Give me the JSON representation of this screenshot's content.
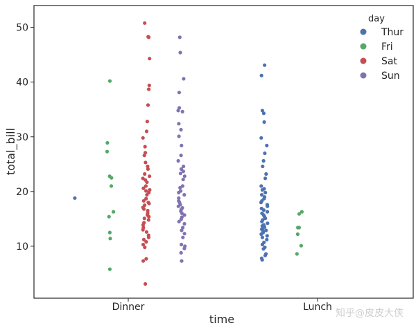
{
  "chart_data": {
    "type": "scatter",
    "subtype": "strip (stripplot with hue dodge)",
    "xlabel": "time",
    "ylabel": "total_bill",
    "categories": [
      "Dinner",
      "Lunch"
    ],
    "ylim": [
      0.5,
      54
    ],
    "yticks": [
      10,
      20,
      30,
      40,
      50
    ],
    "grid": false,
    "legend": {
      "title": "day",
      "placement": "top-right"
    },
    "series": [
      {
        "name": "Thur",
        "color": "#4C72B0",
        "points": [
          {
            "category": "Dinner",
            "y": 18.8
          },
          {
            "category": "Lunch",
            "y": 43.1
          },
          {
            "category": "Lunch",
            "y": 41.2
          },
          {
            "category": "Lunch",
            "y": 34.8
          },
          {
            "category": "Lunch",
            "y": 34.3
          },
          {
            "category": "Lunch",
            "y": 32.7
          },
          {
            "category": "Lunch",
            "y": 29.8
          },
          {
            "category": "Lunch",
            "y": 28.4
          },
          {
            "category": "Lunch",
            "y": 27.0
          },
          {
            "category": "Lunch",
            "y": 25.6
          },
          {
            "category": "Lunch",
            "y": 24.6
          },
          {
            "category": "Lunch",
            "y": 23.2
          },
          {
            "category": "Lunch",
            "y": 22.4
          },
          {
            "category": "Lunch",
            "y": 21.0
          },
          {
            "category": "Lunch",
            "y": 20.5
          },
          {
            "category": "Lunch",
            "y": 20.3
          },
          {
            "category": "Lunch",
            "y": 19.8
          },
          {
            "category": "Lunch",
            "y": 19.4
          },
          {
            "category": "Lunch",
            "y": 19.0
          },
          {
            "category": "Lunch",
            "y": 18.7
          },
          {
            "category": "Lunch",
            "y": 18.3
          },
          {
            "category": "Lunch",
            "y": 18.0
          },
          {
            "category": "Lunch",
            "y": 17.6
          },
          {
            "category": "Lunch",
            "y": 17.3
          },
          {
            "category": "Lunch",
            "y": 16.9
          },
          {
            "category": "Lunch",
            "y": 16.6
          },
          {
            "category": "Lunch",
            "y": 16.3
          },
          {
            "category": "Lunch",
            "y": 16.0
          },
          {
            "category": "Lunch",
            "y": 15.7
          },
          {
            "category": "Lunch",
            "y": 15.4
          },
          {
            "category": "Lunch",
            "y": 15.1
          },
          {
            "category": "Lunch",
            "y": 14.8
          },
          {
            "category": "Lunch",
            "y": 14.5
          },
          {
            "category": "Lunch",
            "y": 14.2
          },
          {
            "category": "Lunch",
            "y": 13.9
          },
          {
            "category": "Lunch",
            "y": 13.7
          },
          {
            "category": "Lunch",
            "y": 13.5
          },
          {
            "category": "Lunch",
            "y": 13.3
          },
          {
            "category": "Lunch",
            "y": 13.1
          },
          {
            "category": "Lunch",
            "y": 12.9
          },
          {
            "category": "Lunch",
            "y": 12.7
          },
          {
            "category": "Lunch",
            "y": 12.5
          },
          {
            "category": "Lunch",
            "y": 12.2
          },
          {
            "category": "Lunch",
            "y": 11.9
          },
          {
            "category": "Lunch",
            "y": 11.6
          },
          {
            "category": "Lunch",
            "y": 11.2
          },
          {
            "category": "Lunch",
            "y": 10.7
          },
          {
            "category": "Lunch",
            "y": 10.3
          },
          {
            "category": "Lunch",
            "y": 9.8
          },
          {
            "category": "Lunch",
            "y": 9.5
          },
          {
            "category": "Lunch",
            "y": 8.6
          },
          {
            "category": "Lunch",
            "y": 8.3
          },
          {
            "category": "Lunch",
            "y": 7.8
          },
          {
            "category": "Lunch",
            "y": 7.5
          }
        ]
      },
      {
        "name": "Fri",
        "color": "#55A868",
        "points": [
          {
            "category": "Dinner",
            "y": 40.2
          },
          {
            "category": "Dinner",
            "y": 28.9
          },
          {
            "category": "Dinner",
            "y": 27.3
          },
          {
            "category": "Dinner",
            "y": 22.8
          },
          {
            "category": "Dinner",
            "y": 22.5
          },
          {
            "category": "Dinner",
            "y": 21.0
          },
          {
            "category": "Dinner",
            "y": 16.3
          },
          {
            "category": "Dinner",
            "y": 15.4
          },
          {
            "category": "Dinner",
            "y": 12.5
          },
          {
            "category": "Dinner",
            "y": 11.4
          },
          {
            "category": "Dinner",
            "y": 5.8
          },
          {
            "category": "Lunch",
            "y": 16.3
          },
          {
            "category": "Lunch",
            "y": 15.9
          },
          {
            "category": "Lunch",
            "y": 13.4
          },
          {
            "category": "Lunch",
            "y": 13.4
          },
          {
            "category": "Lunch",
            "y": 12.2
          },
          {
            "category": "Lunch",
            "y": 10.1
          },
          {
            "category": "Lunch",
            "y": 8.6
          }
        ]
      },
      {
        "name": "Sat",
        "color": "#C44E52",
        "points": [
          {
            "category": "Dinner",
            "y": 50.8
          },
          {
            "category": "Dinner",
            "y": 48.3
          },
          {
            "category": "Dinner",
            "y": 48.2
          },
          {
            "category": "Dinner",
            "y": 44.3
          },
          {
            "category": "Dinner",
            "y": 39.4
          },
          {
            "category": "Dinner",
            "y": 38.7
          },
          {
            "category": "Dinner",
            "y": 35.8
          },
          {
            "category": "Dinner",
            "y": 32.8
          },
          {
            "category": "Dinner",
            "y": 31.0
          },
          {
            "category": "Dinner",
            "y": 29.8
          },
          {
            "category": "Dinner",
            "y": 28.2
          },
          {
            "category": "Dinner",
            "y": 27.1
          },
          {
            "category": "Dinner",
            "y": 26.6
          },
          {
            "category": "Dinner",
            "y": 25.3
          },
          {
            "category": "Dinner",
            "y": 24.6
          },
          {
            "category": "Dinner",
            "y": 24.1
          },
          {
            "category": "Dinner",
            "y": 23.2
          },
          {
            "category": "Dinner",
            "y": 22.8
          },
          {
            "category": "Dinner",
            "y": 22.4
          },
          {
            "category": "Dinner",
            "y": 22.1
          },
          {
            "category": "Dinner",
            "y": 21.7
          },
          {
            "category": "Dinner",
            "y": 21.0
          },
          {
            "category": "Dinner",
            "y": 20.6
          },
          {
            "category": "Dinner",
            "y": 20.3
          },
          {
            "category": "Dinner",
            "y": 20.1
          },
          {
            "category": "Dinner",
            "y": 19.8
          },
          {
            "category": "Dinner",
            "y": 19.4
          },
          {
            "category": "Dinner",
            "y": 18.7
          },
          {
            "category": "Dinner",
            "y": 18.3
          },
          {
            "category": "Dinner",
            "y": 18.0
          },
          {
            "category": "Dinner",
            "y": 17.8
          },
          {
            "category": "Dinner",
            "y": 17.5
          },
          {
            "category": "Dinner",
            "y": 17.1
          },
          {
            "category": "Dinner",
            "y": 16.8
          },
          {
            "category": "Dinner",
            "y": 16.5
          },
          {
            "category": "Dinner",
            "y": 16.0
          },
          {
            "category": "Dinner",
            "y": 15.7
          },
          {
            "category": "Dinner",
            "y": 15.4
          },
          {
            "category": "Dinner",
            "y": 15.1
          },
          {
            "category": "Dinner",
            "y": 14.8
          },
          {
            "category": "Dinner",
            "y": 14.3
          },
          {
            "category": "Dinner",
            "y": 13.9
          },
          {
            "category": "Dinner",
            "y": 13.4
          },
          {
            "category": "Dinner",
            "y": 13.0
          },
          {
            "category": "Dinner",
            "y": 12.6
          },
          {
            "category": "Dinner",
            "y": 12.0
          },
          {
            "category": "Dinner",
            "y": 11.6
          },
          {
            "category": "Dinner",
            "y": 11.2
          },
          {
            "category": "Dinner",
            "y": 10.8
          },
          {
            "category": "Dinner",
            "y": 10.3
          },
          {
            "category": "Dinner",
            "y": 9.8
          },
          {
            "category": "Dinner",
            "y": 7.7
          },
          {
            "category": "Dinner",
            "y": 7.3
          },
          {
            "category": "Dinner",
            "y": 3.1
          }
        ]
      },
      {
        "name": "Sun",
        "color": "#8172B2",
        "points": [
          {
            "category": "Dinner",
            "y": 48.2
          },
          {
            "category": "Dinner",
            "y": 45.4
          },
          {
            "category": "Dinner",
            "y": 40.6
          },
          {
            "category": "Dinner",
            "y": 38.1
          },
          {
            "category": "Dinner",
            "y": 35.3
          },
          {
            "category": "Dinner",
            "y": 34.8
          },
          {
            "category": "Dinner",
            "y": 34.6
          },
          {
            "category": "Dinner",
            "y": 32.4
          },
          {
            "category": "Dinner",
            "y": 31.3
          },
          {
            "category": "Dinner",
            "y": 30.1
          },
          {
            "category": "Dinner",
            "y": 28.4
          },
          {
            "category": "Dinner",
            "y": 26.6
          },
          {
            "category": "Dinner",
            "y": 25.6
          },
          {
            "category": "Dinner",
            "y": 24.6
          },
          {
            "category": "Dinner",
            "y": 24.1
          },
          {
            "category": "Dinner",
            "y": 23.7
          },
          {
            "category": "Dinner",
            "y": 23.3
          },
          {
            "category": "Dinner",
            "y": 22.8
          },
          {
            "category": "Dinner",
            "y": 22.2
          },
          {
            "category": "Dinner",
            "y": 21.0
          },
          {
            "category": "Dinner",
            "y": 20.7
          },
          {
            "category": "Dinner",
            "y": 20.1
          },
          {
            "category": "Dinner",
            "y": 19.8
          },
          {
            "category": "Dinner",
            "y": 19.4
          },
          {
            "category": "Dinner",
            "y": 18.8
          },
          {
            "category": "Dinner",
            "y": 18.3
          },
          {
            "category": "Dinner",
            "y": 18.0
          },
          {
            "category": "Dinner",
            "y": 17.6
          },
          {
            "category": "Dinner",
            "y": 17.3
          },
          {
            "category": "Dinner",
            "y": 17.0
          },
          {
            "category": "Dinner",
            "y": 16.7
          },
          {
            "category": "Dinner",
            "y": 16.4
          },
          {
            "category": "Dinner",
            "y": 16.0
          },
          {
            "category": "Dinner",
            "y": 15.7
          },
          {
            "category": "Dinner",
            "y": 15.3
          },
          {
            "category": "Dinner",
            "y": 14.9
          },
          {
            "category": "Dinner",
            "y": 14.5
          },
          {
            "category": "Dinner",
            "y": 14.1
          },
          {
            "category": "Dinner",
            "y": 13.4
          },
          {
            "category": "Dinner",
            "y": 12.9
          },
          {
            "category": "Dinner",
            "y": 12.3
          },
          {
            "category": "Dinner",
            "y": 11.6
          },
          {
            "category": "Dinner",
            "y": 10.3
          },
          {
            "category": "Dinner",
            "y": 10.0
          },
          {
            "category": "Dinner",
            "y": 9.6
          },
          {
            "category": "Dinner",
            "y": 8.8
          },
          {
            "category": "Dinner",
            "y": 7.3
          }
        ]
      }
    ]
  },
  "watermark": "知乎@皮皮大侠"
}
